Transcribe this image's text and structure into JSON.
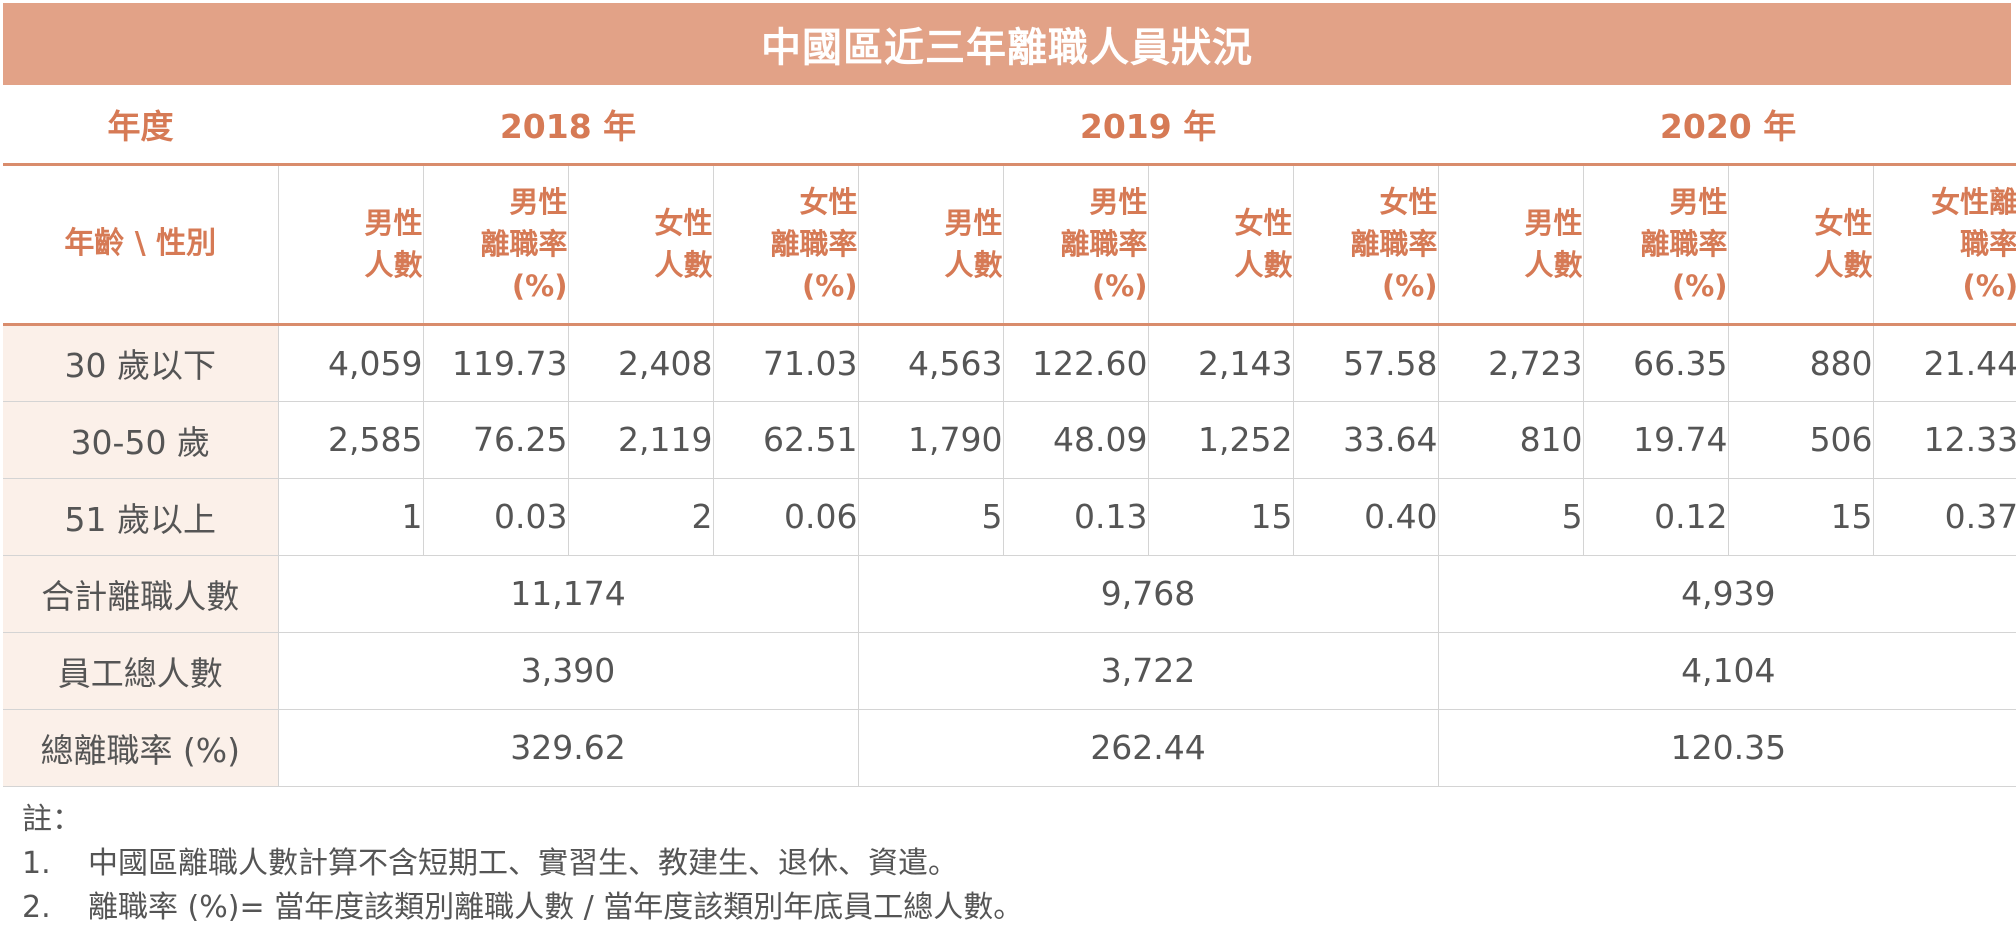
{
  "title": "中國區近三年離職人員狀況",
  "year_label": "年度",
  "years": [
    "2018 年",
    "2019 年",
    "2020 年"
  ],
  "row_header": "年齡 \\ 性別",
  "col_headers": [
    [
      "男性",
      "人數"
    ],
    [
      "男性",
      "離職率",
      "(%)"
    ],
    [
      "女性",
      "人數"
    ],
    [
      "女性",
      "離職率",
      "(%)"
    ]
  ],
  "col_headers_last": [
    "女性離",
    "職率",
    "(%)"
  ],
  "rows": [
    {
      "label": "30 歲以下",
      "cells": [
        "4,059",
        "119.73",
        "2,408",
        "71.03",
        "4,563",
        "122.60",
        "2,143",
        "57.58",
        "2,723",
        "66.35",
        "880",
        "21.44"
      ]
    },
    {
      "label": "30-50 歲",
      "cells": [
        "2,585",
        "76.25",
        "2,119",
        "62.51",
        "1,790",
        "48.09",
        "1,252",
        "33.64",
        "810",
        "19.74",
        "506",
        "12.33"
      ]
    },
    {
      "label": "51 歲以上",
      "cells": [
        "1",
        "0.03",
        "2",
        "0.06",
        "5",
        "0.13",
        "15",
        "0.40",
        "5",
        "0.12",
        "15",
        "0.37"
      ]
    }
  ],
  "summary_rows": [
    {
      "label": "合計離職人數",
      "values": [
        "11,174",
        "9,768",
        "4,939"
      ]
    },
    {
      "label": "員工總人數",
      "values": [
        "3,390",
        "3,722",
        "4,104"
      ]
    },
    {
      "label": "總離職率 (%)",
      "values": [
        "329.62",
        "262.44",
        "120.35"
      ]
    }
  ],
  "notes": {
    "heading": "註：",
    "items": [
      {
        "num": "1.",
        "text": "中國區離職人數計算不含短期工、實習生、教建生、退休、資遣。"
      },
      {
        "num": "2.",
        "text": "離職率 (%)= 當年度該類別離職人數 / 當年度該類別年底員工總人數。"
      }
    ]
  },
  "colors": {
    "accent": "#e2a287",
    "header_text": "#d67a55",
    "row_label_bg": "#fbf0e9"
  }
}
